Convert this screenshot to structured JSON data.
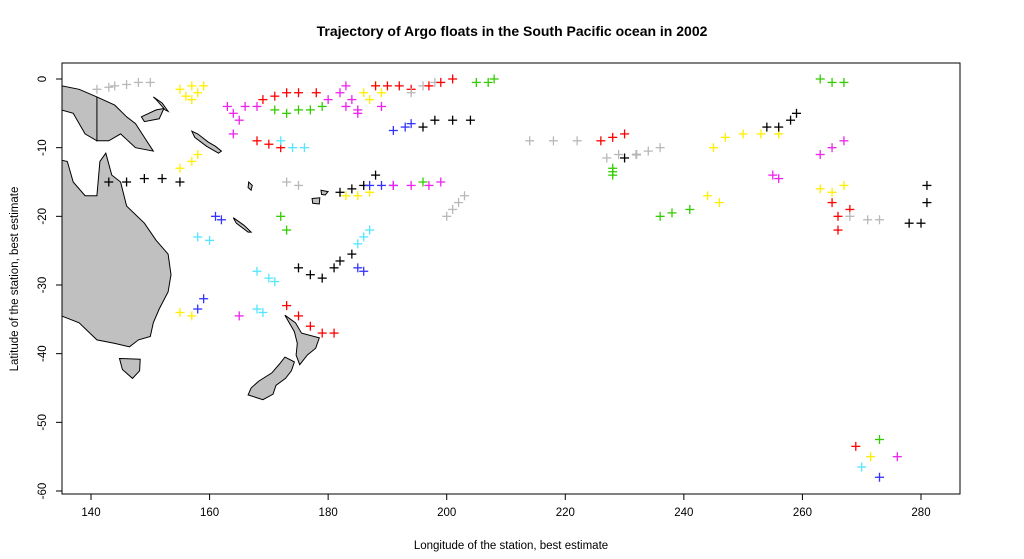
{
  "chart_data": {
    "type": "scatter",
    "title": "Trajectory of Argo floats in the South Pacific ocean in 2002",
    "xlabel": "Longitude of the station, best estimate",
    "ylabel": "Latitude of the station, best estimate",
    "xlim": [
      136,
      283
    ],
    "ylim": [
      -61,
      1.5
    ],
    "x_ticks": [
      140,
      160,
      180,
      200,
      220,
      240,
      260,
      280
    ],
    "y_ticks": [
      0,
      -10,
      -20,
      -30,
      -40,
      -50,
      -60
    ],
    "marker": "plus",
    "grid": false,
    "legend": "none",
    "colors": {
      "black": "#000000",
      "red": "#ff0000",
      "green": "#33cc00",
      "blue": "#3333ff",
      "cyan": "#55e6ff",
      "magenta": "#ee22ee",
      "yellow": "#ffee00",
      "gray": "#b8b8b8",
      "land": "#c0c0c0"
    },
    "series": [
      {
        "color": "gray",
        "points": [
          [
            141,
            -1.5
          ],
          [
            144,
            -1
          ],
          [
            146,
            -0.8
          ],
          [
            148,
            -0.5
          ],
          [
            150,
            -0.5
          ],
          [
            143,
            -1.2
          ]
        ]
      },
      {
        "color": "yellow",
        "points": [
          [
            155,
            -1.5
          ],
          [
            157,
            -1
          ],
          [
            158,
            -2
          ],
          [
            159,
            -1
          ],
          [
            157,
            -3
          ],
          [
            156,
            -2.5
          ]
        ]
      },
      {
        "color": "magenta",
        "points": [
          [
            163,
            -4
          ],
          [
            164,
            -5
          ],
          [
            166,
            -4
          ],
          [
            168,
            -4
          ],
          [
            165,
            -6
          ],
          [
            164,
            -8
          ]
        ]
      },
      {
        "color": "red",
        "points": [
          [
            169,
            -3
          ],
          [
            171,
            -2.5
          ],
          [
            173,
            -2
          ],
          [
            175,
            -2
          ],
          [
            178,
            -2
          ]
        ]
      },
      {
        "color": "green",
        "points": [
          [
            171,
            -4.5
          ],
          [
            173,
            -5
          ],
          [
            175,
            -4.5
          ],
          [
            177,
            -4.5
          ],
          [
            179,
            -4
          ]
        ]
      },
      {
        "color": "magenta",
        "points": [
          [
            180,
            -3
          ],
          [
            182,
            -2
          ],
          [
            183,
            -1
          ],
          [
            184,
            -3
          ],
          [
            185,
            -5
          ]
        ]
      },
      {
        "color": "yellow",
        "points": [
          [
            186,
            -2
          ],
          [
            188,
            -1
          ],
          [
            187,
            -3
          ],
          [
            189,
            -2
          ]
        ]
      },
      {
        "color": "red",
        "points": [
          [
            188,
            -1
          ],
          [
            190,
            -1
          ],
          [
            192,
            -1
          ],
          [
            194,
            -1.5
          ]
        ]
      },
      {
        "color": "gray",
        "points": [
          [
            194,
            -2
          ],
          [
            196,
            -1
          ],
          [
            198,
            -0.5
          ]
        ]
      },
      {
        "color": "red",
        "points": [
          [
            197,
            -1
          ],
          [
            199,
            -0.5
          ],
          [
            201,
            0
          ]
        ]
      },
      {
        "color": "green",
        "points": [
          [
            205,
            -0.5
          ],
          [
            207,
            -0.5
          ],
          [
            208,
            0
          ]
        ]
      },
      {
        "color": "magenta",
        "points": [
          [
            183,
            -4
          ],
          [
            185,
            -4.5
          ],
          [
            189,
            -4
          ]
        ]
      },
      {
        "color": "blue",
        "points": [
          [
            191,
            -7.5
          ],
          [
            193,
            -7
          ],
          [
            194,
            -6.5
          ]
        ]
      },
      {
        "color": "black",
        "points": [
          [
            196,
            -7
          ],
          [
            198,
            -6
          ],
          [
            201,
            -6
          ],
          [
            204,
            -6
          ]
        ]
      },
      {
        "color": "red",
        "points": [
          [
            168,
            -9
          ],
          [
            170,
            -9.5
          ],
          [
            172,
            -10
          ]
        ]
      },
      {
        "color": "cyan",
        "points": [
          [
            172,
            -9
          ],
          [
            174,
            -10
          ],
          [
            176,
            -10
          ]
        ]
      },
      {
        "color": "yellow",
        "points": [
          [
            155,
            -13
          ],
          [
            157,
            -12
          ],
          [
            158,
            -11
          ]
        ]
      },
      {
        "color": "black",
        "points": [
          [
            143,
            -15
          ],
          [
            146,
            -15
          ],
          [
            149,
            -14.5
          ],
          [
            152,
            -14.5
          ],
          [
            155,
            -15
          ]
        ]
      },
      {
        "color": "gray",
        "points": [
          [
            173,
            -15
          ],
          [
            175,
            -15.5
          ]
        ]
      },
      {
        "color": "black",
        "points": [
          [
            182,
            -16.5
          ],
          [
            184,
            -16
          ],
          [
            186,
            -15.5
          ],
          [
            188,
            -14
          ]
        ]
      },
      {
        "color": "yellow",
        "points": [
          [
            183,
            -17
          ],
          [
            185,
            -17
          ],
          [
            187,
            -16.5
          ]
        ]
      },
      {
        "color": "blue",
        "points": [
          [
            187,
            -15.5
          ],
          [
            189,
            -15.5
          ],
          [
            191,
            -15.5
          ]
        ]
      },
      {
        "color": "magenta",
        "points": [
          [
            191,
            -15.5
          ],
          [
            194,
            -15.5
          ],
          [
            197,
            -15.5
          ],
          [
            199,
            -15
          ]
        ]
      },
      {
        "color": "green",
        "points": [
          [
            196,
            -15
          ]
        ]
      },
      {
        "color": "gray",
        "points": [
          [
            200,
            -20
          ],
          [
            201,
            -19
          ],
          [
            202,
            -18
          ],
          [
            203,
            -17
          ]
        ]
      },
      {
        "color": "gray",
        "points": [
          [
            214,
            -9
          ],
          [
            218,
            -9
          ],
          [
            222,
            -9
          ]
        ]
      },
      {
        "color": "red",
        "points": [
          [
            226,
            -9
          ],
          [
            228,
            -8.5
          ],
          [
            230,
            -8
          ]
        ]
      },
      {
        "color": "gray",
        "points": [
          [
            227,
            -11.5
          ],
          [
            229,
            -11
          ]
        ]
      },
      {
        "color": "black",
        "points": [
          [
            230,
            -11.5
          ],
          [
            232,
            -11
          ]
        ]
      },
      {
        "color": "gray",
        "points": [
          [
            232,
            -11
          ],
          [
            234,
            -10.5
          ],
          [
            236,
            -10
          ]
        ]
      },
      {
        "color": "green",
        "points": [
          [
            228,
            -13
          ],
          [
            228,
            -13.5
          ],
          [
            228,
            -14
          ]
        ]
      },
      {
        "color": "yellow",
        "points": [
          [
            245,
            -10
          ],
          [
            247,
            -8.5
          ],
          [
            250,
            -8
          ],
          [
            253,
            -8
          ],
          [
            256,
            -8
          ]
        ]
      },
      {
        "color": "black",
        "points": [
          [
            254,
            -7
          ],
          [
            256,
            -7
          ],
          [
            258,
            -6
          ],
          [
            259,
            -5
          ]
        ]
      },
      {
        "color": "green",
        "points": [
          [
            263,
            0
          ],
          [
            265,
            -0.5
          ],
          [
            267,
            -0.5
          ]
        ]
      },
      {
        "color": "magenta",
        "points": [
          [
            263,
            -11
          ],
          [
            265,
            -10
          ],
          [
            267,
            -9
          ]
        ]
      },
      {
        "color": "magenta",
        "points": [
          [
            255,
            -14
          ],
          [
            256,
            -14.5
          ]
        ]
      },
      {
        "color": "yellow",
        "points": [
          [
            263,
            -16
          ],
          [
            265,
            -16.5
          ],
          [
            267,
            -15.5
          ]
        ]
      },
      {
        "color": "red",
        "points": [
          [
            265,
            -18
          ],
          [
            266,
            -20
          ],
          [
            266,
            -22
          ],
          [
            268,
            -19
          ]
        ]
      },
      {
        "color": "gray",
        "points": [
          [
            268,
            -20
          ],
          [
            271,
            -20.5
          ],
          [
            273,
            -20.5
          ]
        ]
      },
      {
        "color": "black",
        "points": [
          [
            278,
            -21
          ],
          [
            280,
            -21
          ],
          [
            281,
            -18
          ],
          [
            281,
            -15.5
          ]
        ]
      },
      {
        "color": "green",
        "points": [
          [
            236,
            -20
          ],
          [
            238,
            -19.5
          ],
          [
            241,
            -19
          ]
        ]
      },
      {
        "color": "yellow",
        "points": [
          [
            244,
            -17
          ],
          [
            246,
            -18
          ]
        ]
      },
      {
        "color": "blue",
        "points": [
          [
            161,
            -20
          ],
          [
            162,
            -20.5
          ]
        ]
      },
      {
        "color": "cyan",
        "points": [
          [
            158,
            -23
          ],
          [
            160,
            -23.5
          ]
        ]
      },
      {
        "color": "green",
        "points": [
          [
            172,
            -20
          ],
          [
            173,
            -22
          ]
        ]
      },
      {
        "color": "cyan",
        "points": [
          [
            168,
            -28
          ],
          [
            170,
            -29
          ],
          [
            171,
            -29.5
          ]
        ]
      },
      {
        "color": "black",
        "points": [
          [
            175,
            -27.5
          ],
          [
            177,
            -28.5
          ],
          [
            179,
            -29
          ],
          [
            181,
            -27.5
          ]
        ]
      },
      {
        "color": "black",
        "points": [
          [
            182,
            -26.5
          ],
          [
            184,
            -25.5
          ]
        ]
      },
      {
        "color": "blue",
        "points": [
          [
            185,
            -27.5
          ],
          [
            186,
            -28
          ]
        ]
      },
      {
        "color": "cyan",
        "points": [
          [
            185,
            -24
          ],
          [
            186,
            -23
          ],
          [
            187,
            -22
          ]
        ]
      },
      {
        "color": "yellow",
        "points": [
          [
            155,
            -34
          ],
          [
            157,
            -34.5
          ]
        ]
      },
      {
        "color": "blue",
        "points": [
          [
            158,
            -33.5
          ],
          [
            159,
            -32
          ]
        ]
      },
      {
        "color": "magenta",
        "points": [
          [
            165,
            -34.5
          ]
        ]
      },
      {
        "color": "cyan",
        "points": [
          [
            168,
            -33.5
          ],
          [
            169,
            -34
          ]
        ]
      },
      {
        "color": "red",
        "points": [
          [
            173,
            -33
          ],
          [
            175,
            -34.5
          ],
          [
            177,
            -36
          ],
          [
            179,
            -37
          ],
          [
            181,
            -37
          ]
        ]
      },
      {
        "color": "red",
        "points": [
          [
            269,
            -53.5
          ]
        ]
      },
      {
        "color": "green",
        "points": [
          [
            273,
            -52.5
          ]
        ]
      },
      {
        "color": "cyan",
        "points": [
          [
            270,
            -56.5
          ]
        ]
      },
      {
        "color": "yellow",
        "points": [
          [
            271.5,
            -55
          ]
        ]
      },
      {
        "color": "magenta",
        "points": [
          [
            276,
            -55
          ]
        ]
      },
      {
        "color": "blue",
        "points": [
          [
            273,
            -58
          ]
        ]
      }
    ]
  }
}
